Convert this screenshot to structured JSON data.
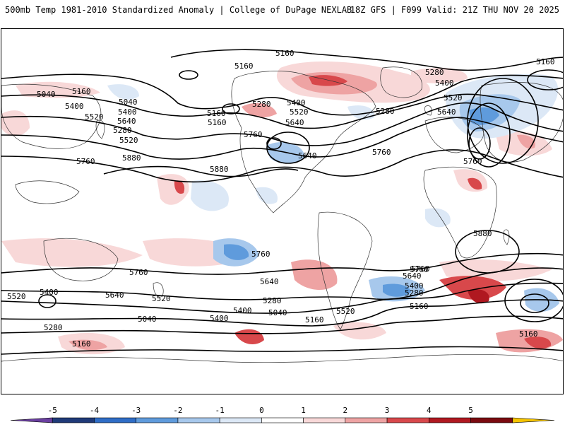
{
  "header": {
    "title": "500mb Temp 1981-2010 Standardized Anomaly | College of DuPage NEXLAB",
    "run_info": "18Z GFS | F099 Valid: 21Z THU NOV 20 2025"
  },
  "colorbar": {
    "tick_labels": [
      "-5",
      "-4",
      "-3",
      "-2",
      "-1",
      "0",
      "1",
      "2",
      "3",
      "4",
      "5"
    ],
    "colors": [
      "#6a3fa0",
      "#1f3a78",
      "#2f6dc6",
      "#5f9bdc",
      "#a7c8ec",
      "#dce8f6",
      "#ffffff",
      "#f8d8d8",
      "#eea3a3",
      "#d8484b",
      "#b01820",
      "#7a0a10",
      "#f5c400"
    ]
  },
  "contours": {
    "labels": [
      "5160",
      "5160",
      "5040",
      "5160",
      "5040",
      "5160",
      "5280",
      "5400",
      "5520",
      "5640",
      "5280",
      "5400",
      "5520",
      "5640",
      "5400",
      "5520",
      "5640",
      "5760",
      "5760",
      "5880",
      "5880",
      "5280",
      "5400",
      "5520",
      "5280",
      "5760",
      "5640",
      "5760",
      "5160",
      "5160",
      "5760",
      "5640",
      "5760",
      "5880",
      "5760",
      "5520",
      "5400",
      "5640",
      "5520",
      "5400",
      "5280",
      "5040",
      "5400",
      "5040",
      "5160",
      "5280",
      "5160",
      "5760",
      "5640",
      "5520",
      "5400",
      "5280",
      "5160",
      "5160"
    ]
  }
}
